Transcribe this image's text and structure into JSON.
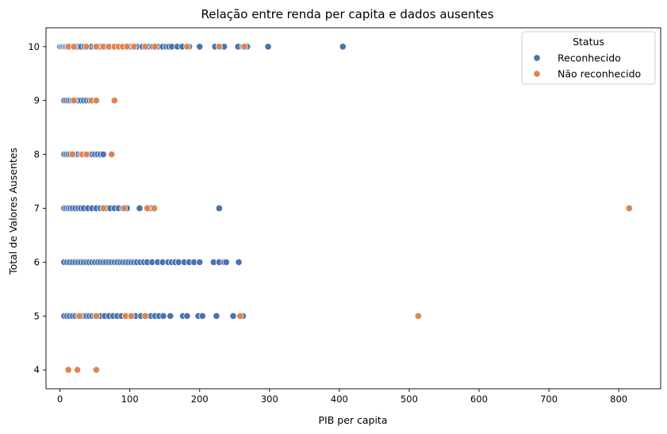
{
  "chart_data": {
    "type": "scatter",
    "title": "Relação entre renda per capita e dados ausentes",
    "xlabel": "PIB per capita",
    "ylabel": "Total de Valores Ausentes",
    "xlim": [
      -20,
      860
    ],
    "ylim": [
      3.65,
      10.35
    ],
    "xticks": [
      0,
      100,
      200,
      300,
      400,
      500,
      600,
      700,
      800
    ],
    "yticks": [
      4,
      5,
      6,
      7,
      8,
      9,
      10
    ],
    "grid": false,
    "legend": {
      "title": "Status",
      "position": "top-right"
    },
    "series": [
      {
        "name": "Reconhecido",
        "color": "#4c72b0",
        "points": [
          [
            0,
            10
          ],
          [
            2,
            10
          ],
          [
            4,
            10
          ],
          [
            6,
            10
          ],
          [
            8,
            10
          ],
          [
            10,
            10
          ],
          [
            12,
            10
          ],
          [
            14,
            10
          ],
          [
            16,
            10
          ],
          [
            20,
            10
          ],
          [
            25,
            10
          ],
          [
            30,
            10
          ],
          [
            35,
            10
          ],
          [
            40,
            10
          ],
          [
            45,
            10
          ],
          [
            50,
            10
          ],
          [
            58,
            10
          ],
          [
            66,
            10
          ],
          [
            75,
            10
          ],
          [
            85,
            10
          ],
          [
            100,
            10
          ],
          [
            110,
            10
          ],
          [
            118,
            10
          ],
          [
            126,
            10
          ],
          [
            133,
            10
          ],
          [
            140,
            10
          ],
          [
            147,
            10
          ],
          [
            152,
            10
          ],
          [
            156,
            10
          ],
          [
            160,
            10
          ],
          [
            168,
            10
          ],
          [
            175,
            10
          ],
          [
            185,
            10
          ],
          [
            200,
            10
          ],
          [
            222,
            10
          ],
          [
            230,
            10
          ],
          [
            235,
            10
          ],
          [
            255,
            10
          ],
          [
            262,
            10
          ],
          [
            268,
            10
          ],
          [
            298,
            10
          ],
          [
            405,
            10
          ],
          [
            6,
            9
          ],
          [
            9,
            9
          ],
          [
            12,
            9
          ],
          [
            15,
            9
          ],
          [
            18,
            9
          ],
          [
            22,
            9
          ],
          [
            26,
            9
          ],
          [
            30,
            9
          ],
          [
            34,
            9
          ],
          [
            38,
            9
          ],
          [
            42,
            9
          ],
          [
            48,
            9
          ],
          [
            6,
            8
          ],
          [
            9,
            8
          ],
          [
            12,
            8
          ],
          [
            15,
            8
          ],
          [
            18,
            8
          ],
          [
            22,
            8
          ],
          [
            26,
            8
          ],
          [
            30,
            8
          ],
          [
            38,
            8
          ],
          [
            42,
            8
          ],
          [
            46,
            8
          ],
          [
            50,
            8
          ],
          [
            54,
            8
          ],
          [
            58,
            8
          ],
          [
            62,
            8
          ],
          [
            6,
            7
          ],
          [
            9,
            7
          ],
          [
            12,
            7
          ],
          [
            15,
            7
          ],
          [
            18,
            7
          ],
          [
            22,
            7
          ],
          [
            26,
            7
          ],
          [
            30,
            7
          ],
          [
            34,
            7
          ],
          [
            40,
            7
          ],
          [
            46,
            7
          ],
          [
            52,
            7
          ],
          [
            58,
            7
          ],
          [
            62,
            7
          ],
          [
            66,
            7
          ],
          [
            72,
            7
          ],
          [
            78,
            7
          ],
          [
            84,
            7
          ],
          [
            90,
            7
          ],
          [
            96,
            7
          ],
          [
            114,
            7
          ],
          [
            130,
            7
          ],
          [
            228,
            7
          ],
          [
            6,
            6
          ],
          [
            10,
            6
          ],
          [
            14,
            6
          ],
          [
            18,
            6
          ],
          [
            22,
            6
          ],
          [
            26,
            6
          ],
          [
            30,
            6
          ],
          [
            34,
            6
          ],
          [
            38,
            6
          ],
          [
            42,
            6
          ],
          [
            46,
            6
          ],
          [
            50,
            6
          ],
          [
            54,
            6
          ],
          [
            58,
            6
          ],
          [
            62,
            6
          ],
          [
            66,
            6
          ],
          [
            70,
            6
          ],
          [
            74,
            6
          ],
          [
            78,
            6
          ],
          [
            82,
            6
          ],
          [
            86,
            6
          ],
          [
            90,
            6
          ],
          [
            94,
            6
          ],
          [
            98,
            6
          ],
          [
            102,
            6
          ],
          [
            106,
            6
          ],
          [
            110,
            6
          ],
          [
            115,
            6
          ],
          [
            120,
            6
          ],
          [
            125,
            6
          ],
          [
            132,
            6
          ],
          [
            140,
            6
          ],
          [
            147,
            6
          ],
          [
            155,
            6
          ],
          [
            160,
            6
          ],
          [
            165,
            6
          ],
          [
            170,
            6
          ],
          [
            178,
            6
          ],
          [
            185,
            6
          ],
          [
            192,
            6
          ],
          [
            200,
            6
          ],
          [
            220,
            6
          ],
          [
            228,
            6
          ],
          [
            235,
            6
          ],
          [
            238,
            6
          ],
          [
            256,
            6
          ],
          [
            6,
            5
          ],
          [
            10,
            5
          ],
          [
            14,
            5
          ],
          [
            18,
            5
          ],
          [
            22,
            5
          ],
          [
            26,
            5
          ],
          [
            30,
            5
          ],
          [
            34,
            5
          ],
          [
            38,
            5
          ],
          [
            42,
            5
          ],
          [
            46,
            5
          ],
          [
            50,
            5
          ],
          [
            54,
            5
          ],
          [
            58,
            5
          ],
          [
            64,
            5
          ],
          [
            70,
            5
          ],
          [
            76,
            5
          ],
          [
            82,
            5
          ],
          [
            88,
            5
          ],
          [
            94,
            5
          ],
          [
            100,
            5
          ],
          [
            108,
            5
          ],
          [
            116,
            5
          ],
          [
            124,
            5
          ],
          [
            130,
            5
          ],
          [
            136,
            5
          ],
          [
            142,
            5
          ],
          [
            148,
            5
          ],
          [
            158,
            5
          ],
          [
            176,
            5
          ],
          [
            182,
            5
          ],
          [
            198,
            5
          ],
          [
            204,
            5
          ],
          [
            224,
            5
          ],
          [
            248,
            5
          ],
          [
            262,
            5
          ]
        ]
      },
      {
        "name": "Não reconhecido",
        "color": "#dd8452",
        "points": [
          [
            12,
            10
          ],
          [
            20,
            10
          ],
          [
            38,
            10
          ],
          [
            52,
            10
          ],
          [
            62,
            10
          ],
          [
            70,
            10
          ],
          [
            78,
            10
          ],
          [
            84,
            10
          ],
          [
            90,
            10
          ],
          [
            96,
            10
          ],
          [
            106,
            10
          ],
          [
            122,
            10
          ],
          [
            136,
            10
          ],
          [
            182,
            10
          ],
          [
            228,
            10
          ],
          [
            264,
            10
          ],
          [
            20,
            9
          ],
          [
            45,
            9
          ],
          [
            52,
            9
          ],
          [
            78,
            9
          ],
          [
            18,
            8
          ],
          [
            32,
            8
          ],
          [
            38,
            8
          ],
          [
            74,
            8
          ],
          [
            62,
            7
          ],
          [
            92,
            7
          ],
          [
            125,
            7
          ],
          [
            135,
            7
          ],
          [
            815,
            7
          ],
          [
            28,
            5
          ],
          [
            52,
            5
          ],
          [
            94,
            5
          ],
          [
            102,
            5
          ],
          [
            122,
            5
          ],
          [
            258,
            5
          ],
          [
            513,
            5
          ],
          [
            12,
            4
          ],
          [
            25,
            4
          ],
          [
            52,
            4
          ]
        ]
      }
    ]
  }
}
